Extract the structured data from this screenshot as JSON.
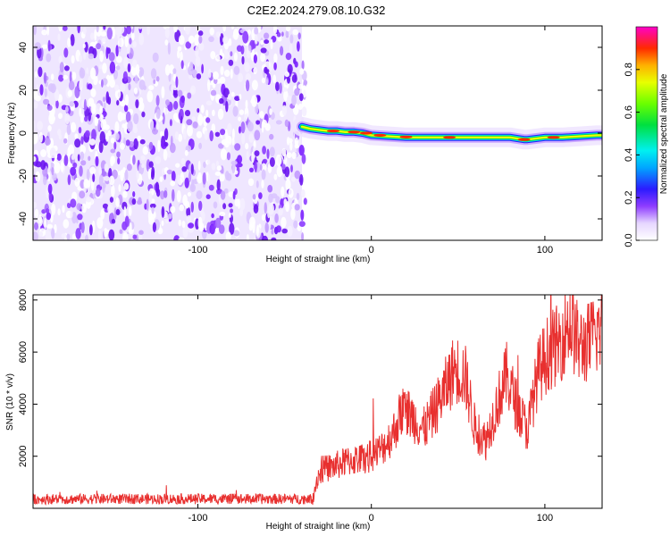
{
  "title": "C2E2.2024.279.08.10.G32",
  "chart_data": [
    {
      "type": "heatmap",
      "xlabel": "Height of straight line (km)",
      "ylabel": "Frequency (Hz)",
      "xlim": [
        -195,
        133
      ],
      "ylim": [
        -50,
        50
      ],
      "xticks": [
        -100,
        0,
        100
      ],
      "yticks": [
        -40,
        -20,
        0,
        20,
        40
      ],
      "noise_region_x": [
        -195,
        -40
      ],
      "signal_trace": {
        "x": [
          -40,
          -35,
          -30,
          -25,
          -20,
          -15,
          -10,
          -5,
          0,
          10,
          20,
          40,
          60,
          80,
          88,
          90,
          100,
          110,
          120,
          130,
          133
        ],
        "freq": [
          3,
          2,
          1.5,
          1,
          1,
          0.5,
          0.5,
          0,
          -1,
          -1.5,
          -2,
          -2,
          -2,
          -2,
          -3,
          -3,
          -2,
          -2,
          -1.5,
          -1,
          -1
        ]
      },
      "colorbar": {
        "label": "Normalized spectral amplitude",
        "ticks": [
          "0.0",
          "0.2",
          "0.4",
          "0.6",
          "0.8"
        ],
        "range": [
          0,
          1
        ]
      }
    },
    {
      "type": "line",
      "xlabel": "Height of straight line (km)",
      "ylabel": "SNR (10 * v/v)",
      "xlim": [
        -195,
        133
      ],
      "ylim": [
        0,
        8200
      ],
      "xticks": [
        -100,
        0,
        100
      ],
      "yticks": [
        2000,
        4000,
        6000,
        8000
      ],
      "color": "#e8302f",
      "series": [
        {
          "x": [
            -195,
            -180,
            -160,
            -140,
            -120,
            -100,
            -80,
            -60,
            -40,
            -34,
            -31,
            -28,
            -22,
            -14,
            -6,
            0,
            6,
            12,
            18,
            24,
            30,
            36,
            42,
            48,
            54,
            60,
            66,
            72,
            78,
            84,
            90,
            96,
            102,
            108,
            114,
            120,
            126,
            133
          ],
          "values": [
            350,
            350,
            360,
            360,
            360,
            360,
            360,
            360,
            360,
            360,
            1200,
            1500,
            1600,
            1800,
            1900,
            2000,
            2300,
            2800,
            3800,
            3500,
            3000,
            3700,
            4500,
            5400,
            5100,
            3000,
            2600,
            3900,
            5100,
            3900,
            3000,
            5200,
            6000,
            6300,
            7200,
            6200,
            6400,
            7000
          ]
        }
      ]
    }
  ]
}
